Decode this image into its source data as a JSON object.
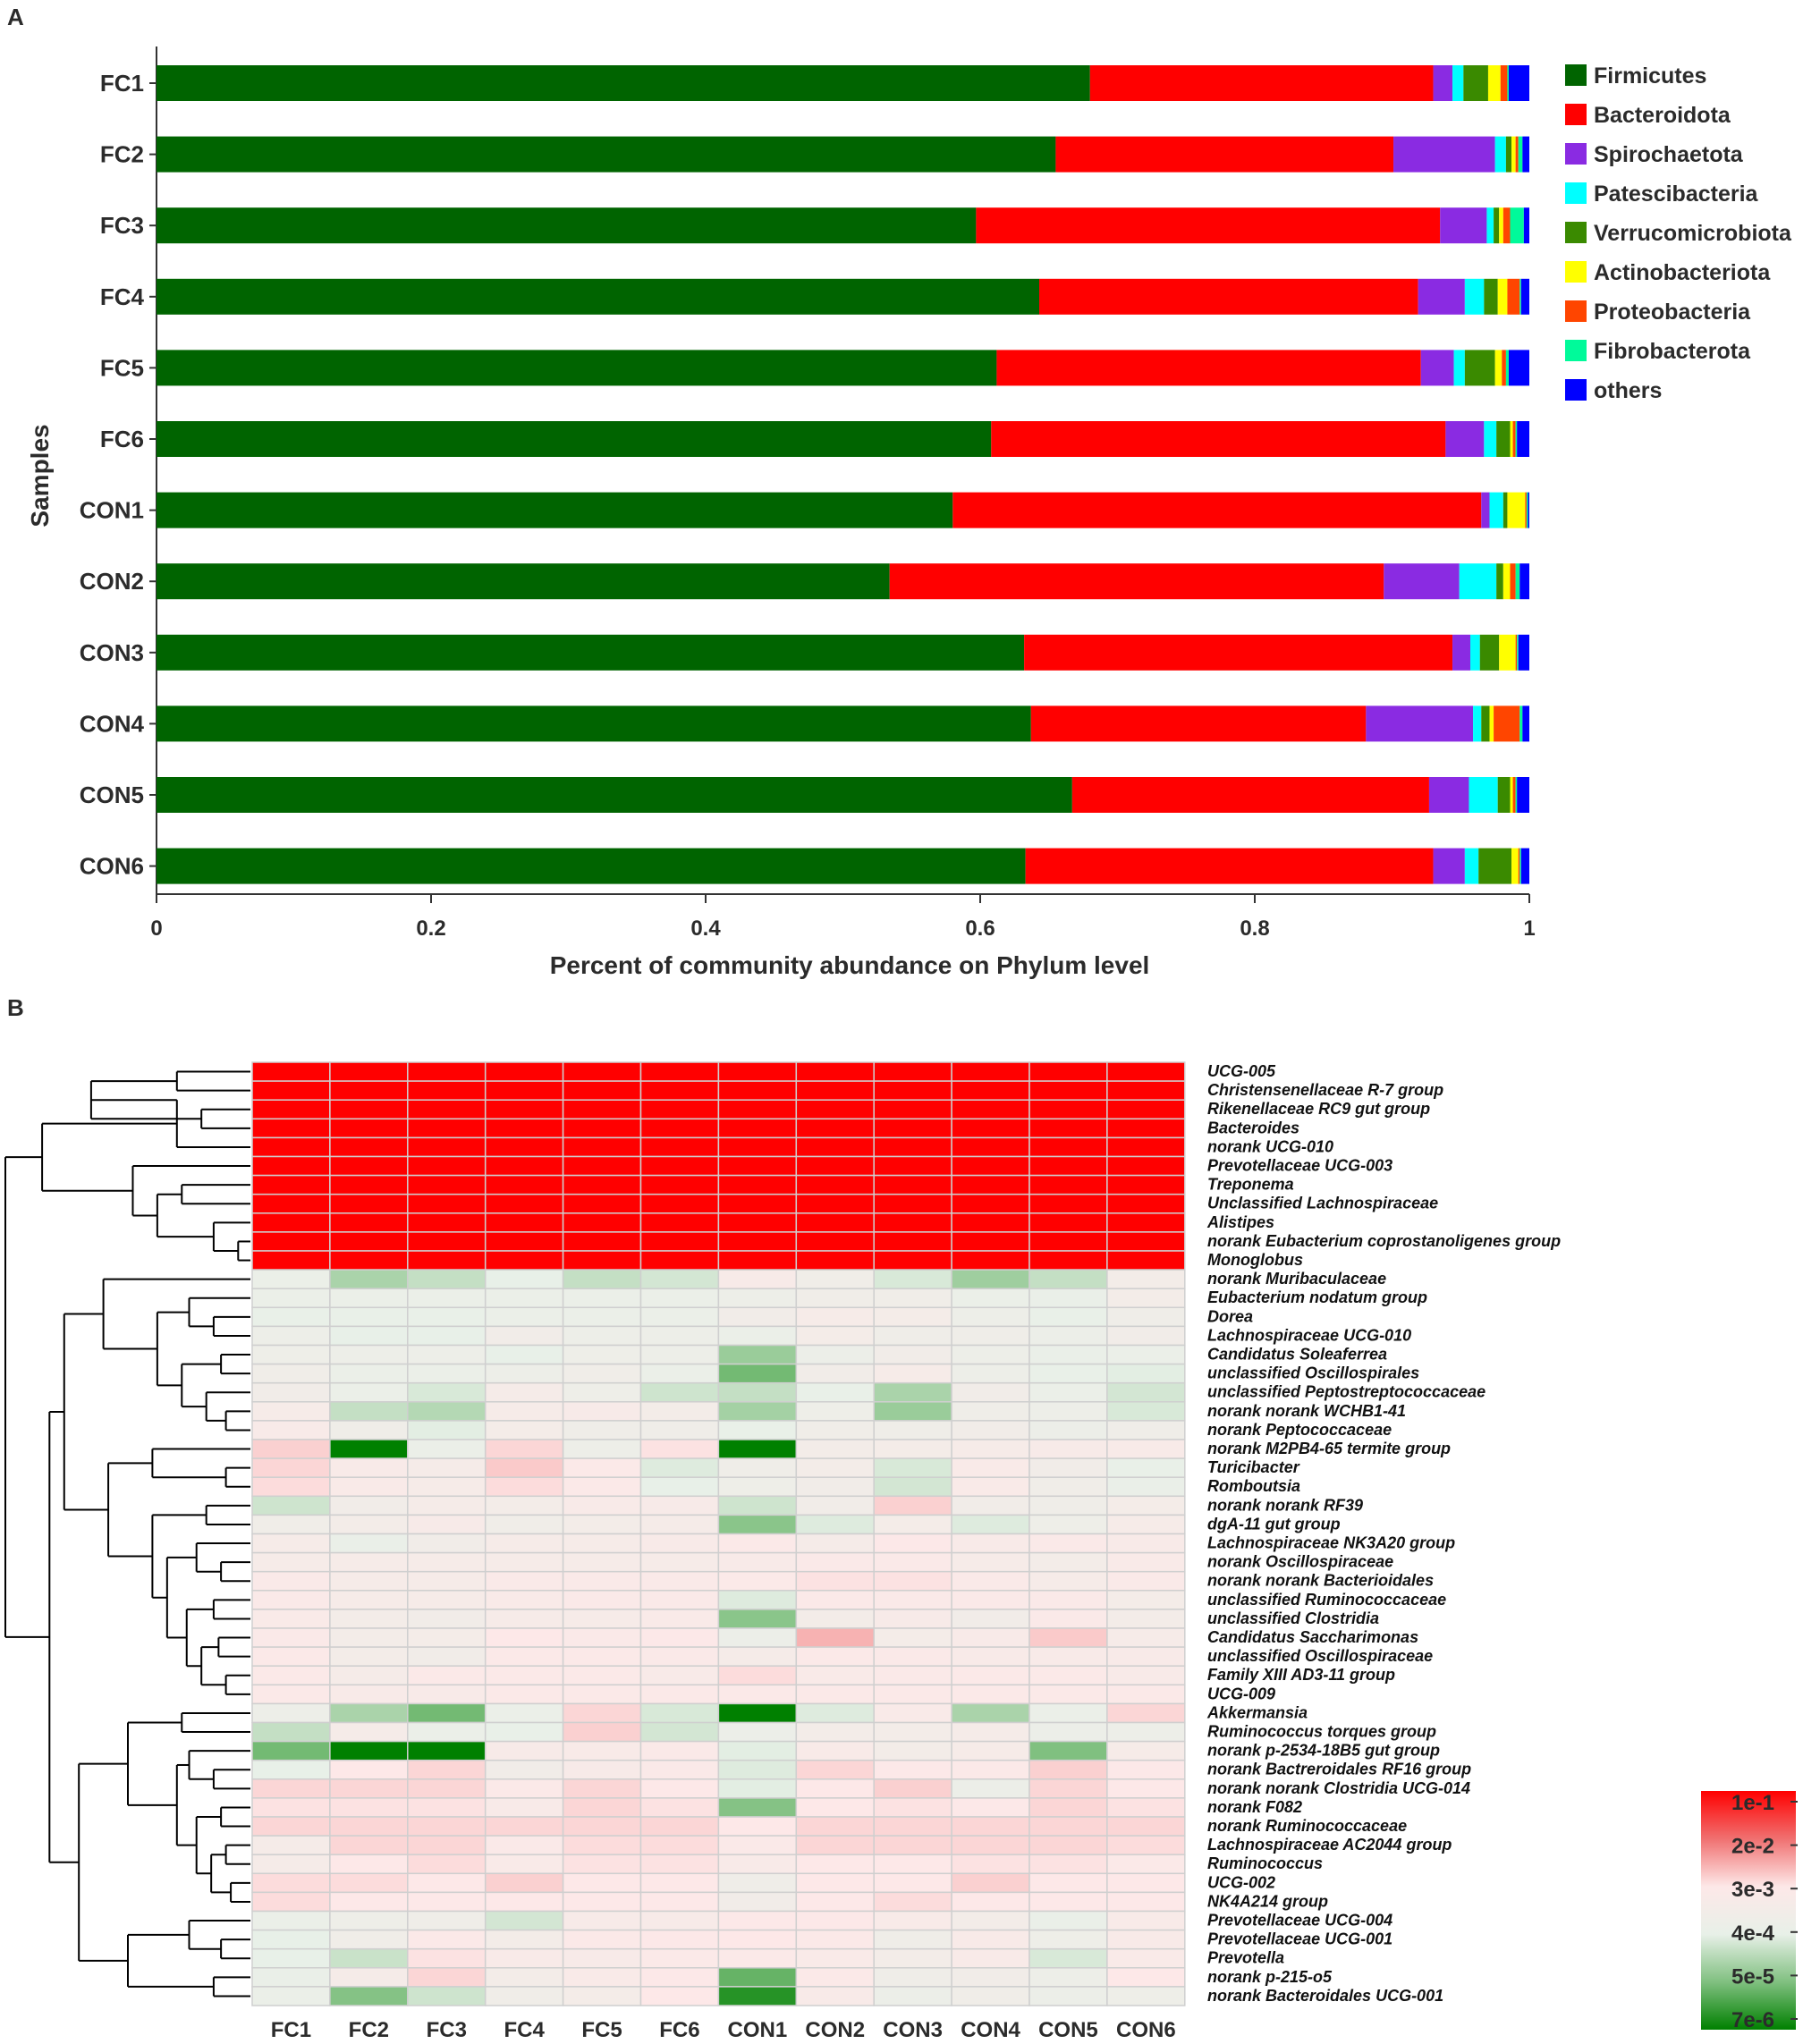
{
  "chart_data": [
    {
      "panel": "A",
      "type": "bar",
      "orientation": "horizontal",
      "stacked": true,
      "xlabel": "Percent of community abundance on Phylum level",
      "ylabel": "Samples",
      "xlim": [
        0,
        1
      ],
      "xticks": [
        "0",
        "0.2",
        "0.4",
        "0.6",
        "0.8",
        "1"
      ],
      "categories": [
        "FC1",
        "FC2",
        "FC3",
        "FC4",
        "FC5",
        "FC6",
        "CON1",
        "CON2",
        "CON3",
        "CON4",
        "CON5",
        "CON6"
      ],
      "series": [
        {
          "name": "Firmicutes",
          "color": "#006400",
          "values": [
            0.68,
            0.655,
            0.597,
            0.643,
            0.612,
            0.608,
            0.58,
            0.534,
            0.632,
            0.637,
            0.667,
            0.633
          ]
        },
        {
          "name": "Bacteroidota",
          "color": "#ff0000",
          "values": [
            0.25,
            0.246,
            0.338,
            0.276,
            0.309,
            0.331,
            0.385,
            0.36,
            0.312,
            0.244,
            0.26,
            0.297
          ]
        },
        {
          "name": "Spirochaetota",
          "color": "#8a2be2",
          "values": [
            0.014,
            0.074,
            0.034,
            0.034,
            0.024,
            0.028,
            0.006,
            0.055,
            0.013,
            0.078,
            0.029,
            0.023
          ]
        },
        {
          "name": "Patescibacteria",
          "color": "#00ffff",
          "values": [
            0.008,
            0.008,
            0.005,
            0.014,
            0.008,
            0.009,
            0.01,
            0.027,
            0.007,
            0.006,
            0.021,
            0.01
          ]
        },
        {
          "name": "Verrucomicrobiota",
          "color": "#3a8a00",
          "values": [
            0.018,
            0.004,
            0.004,
            0.01,
            0.022,
            0.01,
            0.003,
            0.005,
            0.014,
            0.006,
            0.009,
            0.024
          ]
        },
        {
          "name": "Actinobacteriota",
          "color": "#ffff00",
          "values": [
            0.009,
            0.003,
            0.003,
            0.007,
            0.005,
            0.002,
            0.013,
            0.005,
            0.012,
            0.003,
            0.002,
            0.005
          ]
        },
        {
          "name": "Proteobacteria",
          "color": "#ff4500",
          "values": [
            0.005,
            0.002,
            0.005,
            0.009,
            0.003,
            0.002,
            0.001,
            0.004,
            0.001,
            0.019,
            0.002,
            0.001
          ]
        },
        {
          "name": "Fibrobacterota",
          "color": "#00fa9a",
          "values": [
            0.001,
            0.003,
            0.01,
            0.001,
            0.002,
            0.001,
            0.001,
            0.003,
            0.001,
            0.002,
            0.001,
            0.001
          ]
        },
        {
          "name": "others",
          "color": "#0000ff",
          "values": [
            0.015,
            0.005,
            0.004,
            0.006,
            0.015,
            0.009,
            0.001,
            0.007,
            0.008,
            0.005,
            0.009,
            0.006
          ]
        }
      ]
    },
    {
      "panel": "B",
      "type": "heatmap",
      "columns": [
        "FC1",
        "FC2",
        "FC3",
        "FC4",
        "FC5",
        "FC6",
        "CON1",
        "CON2",
        "CON3",
        "CON4",
        "CON5",
        "CON6"
      ],
      "rows": [
        "UCG-005",
        "Christensenellaceae R-7 group",
        "Rikenellaceae RC9 gut group",
        "Bacteroides",
        "norank UCG-010",
        "Prevotellaceae UCG-003",
        "Treponema",
        "Unclassified Lachnospiraceae",
        "Alistipes",
        "norank Eubacterium coprostanoligenes group",
        "Monoglobus",
        "norank Muribaculaceae",
        "Eubacterium nodatum group",
        "Dorea",
        "Lachnospiraceae UCG-010",
        "Candidatus Soleaferrea",
        "unclassified Oscillospirales",
        "unclassified Peptostreptococcaceae",
        "norank norank WCHB1-41",
        "norank Peptococcaceae",
        "norank M2PB4-65 termite group",
        "Turicibacter",
        "Romboutsia",
        "norank norank RF39",
        "dgA-11 gut group",
        "Lachnospiraceae NK3A20 group",
        "norank Oscillospiraceae",
        "norank norank Bacterioidales",
        "unclassified Ruminococcaceae",
        "unclassified Clostridia",
        "Candidatus Saccharimonas",
        "unclassified Oscillospiraceae",
        "Family XIII AD3-11 group",
        "UCG-009",
        "Akkermansia",
        "Ruminococcus torques group",
        "norank p-2534-18B5 gut group",
        "norank Bactreroidales RF16 group",
        "norank norank Clostridia UCG-014",
        "norank F082",
        "norank Ruminococcaceae",
        "Lachnospiraceae AC2044 group",
        "Ruminococcus",
        "UCG-002",
        "NK4A214 group",
        "Prevotellaceae UCG-004",
        "Prevotellaceae UCG-001",
        "Prevotella",
        "norank p-215-o5",
        "norank Bacteroidales UCG-001"
      ],
      "scale_labels": [
        "1e-1",
        "2e-2",
        "3e-3",
        "4e-4",
        "5e-5",
        "7e-6"
      ],
      "scale_colors": [
        "#ff0000",
        "#f07070",
        "#fde8e8",
        "#e8f0e8",
        "#80c080",
        "#008000"
      ],
      "values": [
        [
          1.0,
          1.0,
          1.0,
          1.0,
          1.0,
          1.0,
          1.0,
          1.0,
          1.0,
          1.0,
          1.0,
          1.0
        ],
        [
          1.0,
          1.0,
          1.0,
          1.0,
          1.0,
          1.0,
          1.0,
          1.0,
          1.0,
          1.0,
          1.0,
          1.0
        ],
        [
          1.0,
          1.0,
          1.0,
          1.0,
          1.0,
          1.0,
          1.0,
          1.0,
          1.0,
          1.0,
          1.0,
          1.0
        ],
        [
          1.0,
          1.0,
          1.0,
          1.0,
          1.0,
          1.0,
          1.0,
          1.0,
          1.0,
          1.0,
          1.0,
          1.0
        ],
        [
          1.0,
          1.0,
          1.0,
          1.0,
          1.0,
          1.0,
          1.0,
          1.0,
          1.0,
          1.0,
          1.0,
          1.0
        ],
        [
          1.0,
          1.0,
          1.0,
          1.0,
          1.0,
          1.0,
          1.0,
          1.0,
          1.0,
          1.0,
          1.0,
          1.0
        ],
        [
          1.0,
          1.0,
          1.0,
          1.0,
          1.0,
          1.0,
          1.0,
          1.0,
          1.0,
          1.0,
          1.0,
          1.0
        ],
        [
          1.0,
          1.0,
          1.0,
          1.0,
          1.0,
          1.0,
          1.0,
          1.0,
          1.0,
          1.0,
          1.0,
          1.0
        ],
        [
          1.0,
          1.0,
          1.0,
          1.0,
          1.0,
          1.0,
          1.0,
          1.0,
          1.0,
          1.0,
          1.0,
          1.0
        ],
        [
          1.0,
          1.0,
          1.0,
          1.0,
          1.0,
          1.0,
          1.0,
          1.0,
          1.0,
          1.0,
          1.0,
          1.0
        ],
        [
          1.0,
          1.0,
          1.0,
          1.0,
          1.0,
          1.0,
          1.0,
          1.0,
          1.0,
          1.0,
          1.0,
          1.0
        ],
        [
          0.43,
          0.28,
          0.33,
          0.4,
          0.33,
          0.36,
          0.54,
          0.48,
          0.37,
          0.26,
          0.33,
          0.5
        ],
        [
          0.43,
          0.43,
          0.43,
          0.43,
          0.43,
          0.43,
          0.45,
          0.48,
          0.48,
          0.43,
          0.42,
          0.5
        ],
        [
          0.41,
          0.41,
          0.41,
          0.43,
          0.43,
          0.43,
          0.49,
          0.53,
          0.51,
          0.45,
          0.41,
          0.47
        ],
        [
          0.45,
          0.4,
          0.4,
          0.49,
          0.45,
          0.45,
          0.43,
          0.51,
          0.47,
          0.47,
          0.44,
          0.49
        ],
        [
          0.46,
          0.45,
          0.45,
          0.4,
          0.46,
          0.45,
          0.25,
          0.44,
          0.49,
          0.45,
          0.42,
          0.43
        ],
        [
          0.48,
          0.43,
          0.43,
          0.45,
          0.48,
          0.43,
          0.18,
          0.49,
          0.53,
          0.45,
          0.41,
          0.39
        ],
        [
          0.49,
          0.43,
          0.37,
          0.52,
          0.46,
          0.35,
          0.33,
          0.41,
          0.28,
          0.49,
          0.43,
          0.36
        ],
        [
          0.53,
          0.33,
          0.3,
          0.53,
          0.54,
          0.5,
          0.27,
          0.46,
          0.25,
          0.47,
          0.45,
          0.37
        ],
        [
          0.55,
          0.47,
          0.39,
          0.51,
          0.47,
          0.47,
          0.41,
          0.48,
          0.47,
          0.49,
          0.44,
          0.47
        ],
        [
          0.64,
          0.0,
          0.43,
          0.63,
          0.45,
          0.61,
          0.0,
          0.5,
          0.51,
          0.53,
          0.54,
          0.55
        ],
        [
          0.63,
          0.55,
          0.52,
          0.65,
          0.58,
          0.38,
          0.47,
          0.5,
          0.37,
          0.56,
          0.49,
          0.41
        ],
        [
          0.62,
          0.56,
          0.53,
          0.62,
          0.58,
          0.4,
          0.46,
          0.49,
          0.36,
          0.56,
          0.48,
          0.42
        ],
        [
          0.35,
          0.49,
          0.52,
          0.5,
          0.55,
          0.54,
          0.35,
          0.49,
          0.64,
          0.49,
          0.47,
          0.51
        ],
        [
          0.48,
          0.5,
          0.54,
          0.48,
          0.5,
          0.52,
          0.22,
          0.38,
          0.51,
          0.38,
          0.46,
          0.53
        ],
        [
          0.53,
          0.42,
          0.49,
          0.53,
          0.53,
          0.55,
          0.58,
          0.52,
          0.59,
          0.55,
          0.57,
          0.55
        ],
        [
          0.53,
          0.53,
          0.53,
          0.53,
          0.53,
          0.53,
          0.55,
          0.57,
          0.57,
          0.53,
          0.5,
          0.56
        ],
        [
          0.57,
          0.53,
          0.53,
          0.57,
          0.57,
          0.57,
          0.58,
          0.61,
          0.61,
          0.57,
          0.53,
          0.57
        ],
        [
          0.57,
          0.53,
          0.53,
          0.56,
          0.57,
          0.57,
          0.38,
          0.58,
          0.57,
          0.57,
          0.57,
          0.51
        ],
        [
          0.56,
          0.5,
          0.49,
          0.53,
          0.53,
          0.56,
          0.22,
          0.5,
          0.54,
          0.49,
          0.57,
          0.5
        ],
        [
          0.57,
          0.5,
          0.51,
          0.6,
          0.57,
          0.59,
          0.44,
          0.69,
          0.51,
          0.55,
          0.65,
          0.53
        ],
        [
          0.58,
          0.5,
          0.49,
          0.58,
          0.58,
          0.57,
          0.52,
          0.58,
          0.57,
          0.55,
          0.55,
          0.55
        ],
        [
          0.58,
          0.52,
          0.58,
          0.58,
          0.58,
          0.55,
          0.62,
          0.56,
          0.57,
          0.58,
          0.58,
          0.55
        ],
        [
          0.58,
          0.55,
          0.55,
          0.58,
          0.58,
          0.58,
          0.58,
          0.58,
          0.58,
          0.58,
          0.58,
          0.58
        ],
        [
          0.45,
          0.28,
          0.18,
          0.43,
          0.63,
          0.37,
          0.0,
          0.38,
          0.56,
          0.28,
          0.43,
          0.63
        ],
        [
          0.33,
          0.52,
          0.43,
          0.41,
          0.64,
          0.36,
          0.44,
          0.5,
          0.5,
          0.52,
          0.44,
          0.45
        ],
        [
          0.18,
          0.0,
          0.0,
          0.54,
          0.55,
          0.57,
          0.39,
          0.55,
          0.5,
          0.53,
          0.2,
          0.53
        ],
        [
          0.4,
          0.6,
          0.63,
          0.49,
          0.54,
          0.57,
          0.38,
          0.63,
          0.59,
          0.58,
          0.64,
          0.59
        ],
        [
          0.63,
          0.63,
          0.63,
          0.58,
          0.63,
          0.6,
          0.39,
          0.6,
          0.64,
          0.44,
          0.63,
          0.6
        ],
        [
          0.61,
          0.61,
          0.61,
          0.55,
          0.63,
          0.61,
          0.21,
          0.6,
          0.61,
          0.59,
          0.63,
          0.61
        ],
        [
          0.63,
          0.63,
          0.63,
          0.63,
          0.63,
          0.63,
          0.6,
          0.63,
          0.63,
          0.63,
          0.63,
          0.63
        ],
        [
          0.52,
          0.63,
          0.63,
          0.57,
          0.62,
          0.62,
          0.57,
          0.63,
          0.63,
          0.63,
          0.63,
          0.62
        ],
        [
          0.52,
          0.6,
          0.62,
          0.56,
          0.61,
          0.61,
          0.55,
          0.6,
          0.6,
          0.61,
          0.61,
          0.58
        ],
        [
          0.62,
          0.62,
          0.6,
          0.64,
          0.6,
          0.6,
          0.47,
          0.6,
          0.6,
          0.64,
          0.6,
          0.6
        ],
        [
          0.62,
          0.6,
          0.6,
          0.6,
          0.6,
          0.6,
          0.49,
          0.6,
          0.62,
          0.6,
          0.6,
          0.6
        ],
        [
          0.43,
          0.46,
          0.47,
          0.36,
          0.54,
          0.54,
          0.59,
          0.59,
          0.55,
          0.5,
          0.42,
          0.55
        ],
        [
          0.4,
          0.48,
          0.58,
          0.5,
          0.58,
          0.59,
          0.6,
          0.58,
          0.47,
          0.55,
          0.46,
          0.55
        ],
        [
          0.4,
          0.34,
          0.61,
          0.55,
          0.54,
          0.58,
          0.58,
          0.56,
          0.5,
          0.55,
          0.37,
          0.56
        ],
        [
          0.42,
          0.52,
          0.63,
          0.5,
          0.56,
          0.59,
          0.16,
          0.58,
          0.47,
          0.49,
          0.45,
          0.6
        ],
        [
          0.43,
          0.21,
          0.35,
          0.48,
          0.51,
          0.6,
          0.06,
          0.55,
          0.44,
          0.48,
          0.44,
          0.46
        ]
      ]
    }
  ]
}
